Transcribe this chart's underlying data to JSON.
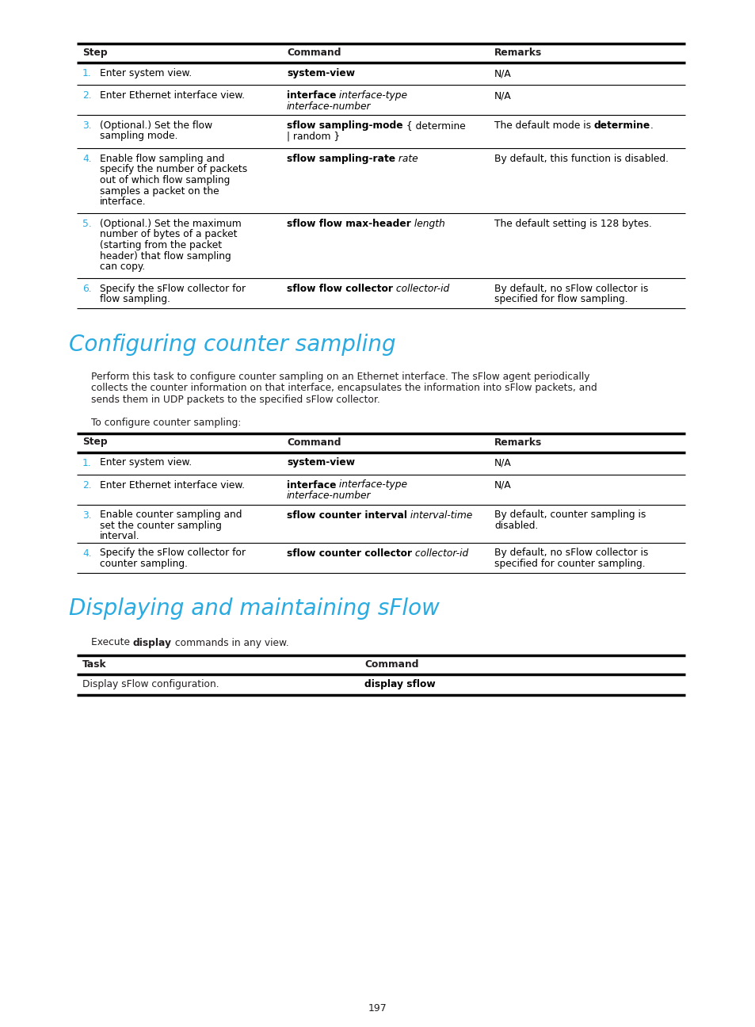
{
  "page_background": "#ffffff",
  "page_number": "197",
  "cyan_color": "#29abe2",
  "black_color": "#231f20",
  "section1_heading": "Configuring counter sampling",
  "section2_heading": "Displaying and maintaining sFlow",
  "section1_para": "Perform this task to configure counter sampling on an Ethernet interface. The sFlow agent periodically\ncollects the counter information on that interface, encapsulates the information into sFlow packets, and\nsends them in UDP packets to the specified sFlow collector.",
  "section1_intro": "To configure counter sampling:",
  "table1_header": [
    "Step",
    "Command",
    "Remarks"
  ],
  "table1_rows": [
    {
      "step_num": "1.",
      "step_text": "Enter system view.",
      "cmd_lines": [
        [
          {
            "text": "system-view",
            "bold": true,
            "italic": false
          }
        ]
      ],
      "remark_lines": [
        [
          {
            "text": "N/A",
            "bold": false,
            "italic": false
          }
        ]
      ]
    },
    {
      "step_num": "2.",
      "step_text": "Enter Ethernet interface view.",
      "cmd_lines": [
        [
          {
            "text": "interface",
            "bold": true,
            "italic": false
          },
          {
            "text": " interface-type",
            "bold": false,
            "italic": true
          }
        ],
        [
          {
            "text": "interface-number",
            "bold": false,
            "italic": true
          }
        ]
      ],
      "remark_lines": [
        [
          {
            "text": "N/A",
            "bold": false,
            "italic": false
          }
        ]
      ]
    },
    {
      "step_num": "3.",
      "step_text": "(Optional.) Set the flow\nsampling mode.",
      "cmd_lines": [
        [
          {
            "text": "sflow sampling-mode",
            "bold": true,
            "italic": false
          },
          {
            "text": " { determine",
            "bold": false,
            "italic": false
          }
        ],
        [
          {
            "text": "| random }",
            "bold": false,
            "italic": false
          }
        ]
      ],
      "remark_lines": [
        [
          {
            "text": "The default mode is ",
            "bold": false,
            "italic": false
          },
          {
            "text": "determine",
            "bold": true,
            "italic": false
          },
          {
            "text": ".",
            "bold": false,
            "italic": false
          }
        ]
      ]
    },
    {
      "step_num": "4.",
      "step_text": "Enable flow sampling and\nspecify the number of packets\nout of which flow sampling\nsamples a packet on the\ninterface.",
      "cmd_lines": [
        [
          {
            "text": "sflow sampling-rate",
            "bold": true,
            "italic": false
          },
          {
            "text": " rate",
            "bold": false,
            "italic": true
          }
        ]
      ],
      "remark_lines": [
        [
          {
            "text": "By default, this function is disabled.",
            "bold": false,
            "italic": false
          }
        ]
      ]
    },
    {
      "step_num": "5.",
      "step_text": "(Optional.) Set the maximum\nnumber of bytes of a packet\n(starting from the packet\nheader) that flow sampling\ncan copy.",
      "cmd_lines": [
        [
          {
            "text": "sflow flow max-header",
            "bold": true,
            "italic": false
          },
          {
            "text": " length",
            "bold": false,
            "italic": true
          }
        ]
      ],
      "remark_lines": [
        [
          {
            "text": "The default setting is 128 bytes.",
            "bold": false,
            "italic": false
          }
        ]
      ]
    },
    {
      "step_num": "6.",
      "step_text": "Specify the sFlow collector for\nflow sampling.",
      "cmd_lines": [
        [
          {
            "text": "sflow flow collector",
            "bold": true,
            "italic": false
          },
          {
            "text": " collector-id",
            "bold": false,
            "italic": true
          }
        ]
      ],
      "remark_lines": [
        [
          {
            "text": "By default, no sFlow collector is",
            "bold": false,
            "italic": false
          }
        ],
        [
          {
            "text": "specified for flow sampling.",
            "bold": false,
            "italic": false
          }
        ]
      ]
    }
  ],
  "table2_header": [
    "Step",
    "Command",
    "Remarks"
  ],
  "table2_rows": [
    {
      "step_num": "1.",
      "step_text": "Enter system view.",
      "cmd_lines": [
        [
          {
            "text": "system-view",
            "bold": true,
            "italic": false
          }
        ]
      ],
      "remark_lines": [
        [
          {
            "text": "N/A",
            "bold": false,
            "italic": false
          }
        ]
      ]
    },
    {
      "step_num": "2.",
      "step_text": "Enter Ethernet interface view.",
      "cmd_lines": [
        [
          {
            "text": "interface",
            "bold": true,
            "italic": false
          },
          {
            "text": " interface-type",
            "bold": false,
            "italic": true
          }
        ],
        [
          {
            "text": "interface-number",
            "bold": false,
            "italic": true
          }
        ]
      ],
      "remark_lines": [
        [
          {
            "text": "N/A",
            "bold": false,
            "italic": false
          }
        ]
      ]
    },
    {
      "step_num": "3.",
      "step_text": "Enable counter sampling and\nset the counter sampling\ninterval.",
      "cmd_lines": [
        [
          {
            "text": "sflow counter interval",
            "bold": true,
            "italic": false
          },
          {
            "text": " interval-time",
            "bold": false,
            "italic": true
          }
        ]
      ],
      "remark_lines": [
        [
          {
            "text": "By default, counter sampling is",
            "bold": false,
            "italic": false
          }
        ],
        [
          {
            "text": "disabled.",
            "bold": false,
            "italic": false
          }
        ]
      ]
    },
    {
      "step_num": "4.",
      "step_text": "Specify the sFlow collector for\ncounter sampling.",
      "cmd_lines": [
        [
          {
            "text": "sflow counter collector",
            "bold": true,
            "italic": false
          },
          {
            "text": " collector-id",
            "bold": false,
            "italic": true
          }
        ]
      ],
      "remark_lines": [
        [
          {
            "text": "By default, no sFlow collector is",
            "bold": false,
            "italic": false
          }
        ],
        [
          {
            "text": "specified for counter sampling.",
            "bold": false,
            "italic": false
          }
        ]
      ]
    }
  ],
  "table3_header": [
    "Task",
    "Command"
  ],
  "table3_rows": [
    {
      "task": "Display sFlow configuration.",
      "cmd_lines": [
        [
          {
            "text": "display sflow",
            "bold": true,
            "italic": false
          }
        ]
      ]
    }
  ]
}
